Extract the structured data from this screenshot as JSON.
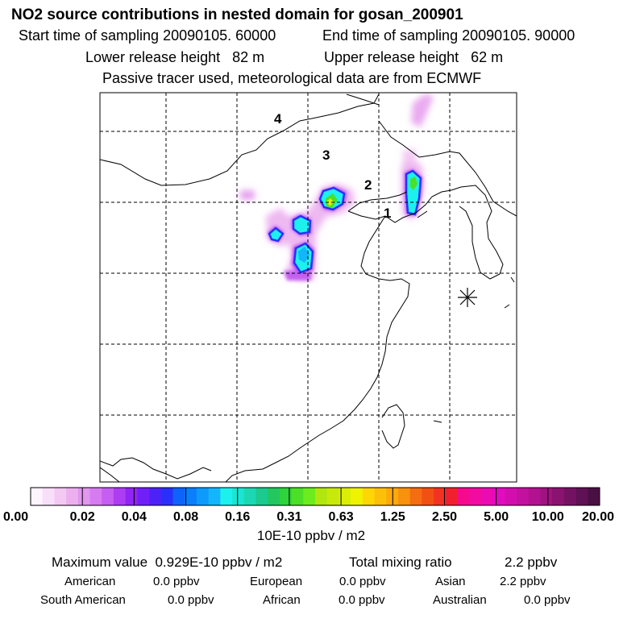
{
  "header": {
    "title": "NO2 source contributions in nested domain for gosan_200901",
    "start_label": "Start time of sampling 20090105. 60000",
    "end_label": "End time of sampling 20090105. 90000",
    "lower_label": "Lower release height   82 m",
    "upper_label": "Upper release height   62 m",
    "note": "Passive tracer used, meteorological data are from ECMWF"
  },
  "map": {
    "region_labels": [
      "1",
      "2",
      "3",
      "4"
    ],
    "receptor_symbol": "station-star-icon"
  },
  "colorbar": {
    "tick_labels": [
      "0.00",
      "0.02",
      "0.04",
      "0.08",
      "0.16",
      "0.31",
      "0.63",
      "1.25",
      "2.50",
      "5.00",
      "10.00",
      "20.00"
    ],
    "unit": "10E-10 ppbv / m2",
    "colors": [
      "#fdf4fd",
      "#f8dff8",
      "#f3c8f3",
      "#ecb0ef",
      "#e196f0",
      "#d67cf0",
      "#c55ef1",
      "#ad3cf3",
      "#9025f5",
      "#7020f7",
      "#4d22f8",
      "#2a30f9",
      "#0f62fb",
      "#0a7ffb",
      "#0e9afb",
      "#14b5fa",
      "#1cf1ee",
      "#1be5d2",
      "#1bd8b2",
      "#1cc98e",
      "#22c760",
      "#2fd33b",
      "#4cdf28",
      "#6cec1e",
      "#b1e60f",
      "#c7ea0a",
      "#dbef06",
      "#eff302",
      "#fed605",
      "#fdc008",
      "#fba90b",
      "#f7910e",
      "#f46d12",
      "#f25013",
      "#f23322",
      "#f2202f",
      "#f50a8d",
      "#f20aa1",
      "#ea0bb2",
      "#e10cc0",
      "#d20fae",
      "#c2119f",
      "#b21290",
      "#9f1380",
      "#8a1370",
      "#741262",
      "#5e1154",
      "#4a0f45"
    ]
  },
  "summary": {
    "max_label": "Maximum value  0.929E-10 ppbv / m2",
    "total_label": "Total mixing ratio",
    "total_value": "2.2 ppbv",
    "rows": [
      [
        [
          "American",
          "0.0 ppbv"
        ],
        [
          "European",
          "0.0 ppbv"
        ],
        [
          "Asian",
          "2.2 ppbv"
        ]
      ],
      [
        [
          "South American",
          "0.0 ppbv"
        ],
        [
          "African",
          "0.0 ppbv"
        ],
        [
          "Australian",
          "0.0 ppbv"
        ]
      ]
    ]
  }
}
